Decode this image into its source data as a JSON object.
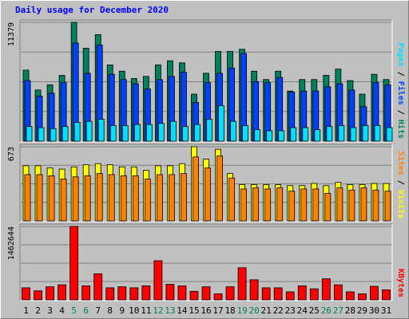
{
  "title": "Daily usage for December 2020",
  "colors": {
    "hits": "#00805c",
    "files": "#0040ff",
    "pages": "#00e0ff",
    "visits": "#ffff00",
    "sites": "#ff8000",
    "kbytes": "#ff0000",
    "weekend_label": "#00805c",
    "weekday_label": "#000000"
  },
  "chart_data": [
    {
      "type": "bar",
      "id": "hits-files-pages",
      "ylim": [
        0,
        11379
      ],
      "y_tick_label": "11379",
      "legend": [
        "Pages",
        "Files",
        "Hits"
      ],
      "x": [
        1,
        2,
        3,
        4,
        5,
        6,
        7,
        8,
        9,
        10,
        11,
        12,
        13,
        14,
        15,
        16,
        17,
        18,
        19,
        20,
        21,
        22,
        23,
        24,
        25,
        26,
        27,
        28,
        29,
        30,
        31
      ],
      "weekend_days": [
        5,
        6,
        12,
        13,
        19,
        20,
        26,
        27
      ],
      "series": [
        {
          "name": "Hits",
          "values": [
            6800,
            4900,
            5400,
            6300,
            11379,
            8900,
            10200,
            7300,
            6700,
            6000,
            6200,
            7300,
            7700,
            7500,
            4500,
            6500,
            8600,
            8600,
            8800,
            6700,
            5900,
            6700,
            4800,
            5900,
            5900,
            6300,
            6900,
            5800,
            4500,
            6400,
            5900
          ]
        },
        {
          "name": "Files",
          "values": [
            5800,
            4300,
            4600,
            5600,
            9400,
            6500,
            9200,
            6400,
            5900,
            5500,
            5000,
            5900,
            6200,
            6600,
            3700,
            5600,
            6500,
            7000,
            8400,
            5700,
            5600,
            6100,
            4700,
            4800,
            4800,
            5200,
            5500,
            4900,
            3300,
            5600,
            5400
          ]
        },
        {
          "name": "Pages",
          "values": [
            1400,
            1300,
            1200,
            1400,
            1800,
            1900,
            2100,
            1500,
            1500,
            1600,
            1600,
            1700,
            1900,
            1400,
            1600,
            2100,
            3400,
            1900,
            1500,
            1100,
            1000,
            1000,
            1300,
            1300,
            1100,
            1400,
            1500,
            1300,
            1500,
            1500,
            1300
          ]
        }
      ]
    },
    {
      "type": "bar",
      "id": "visits-sites",
      "ylim": [
        0,
        673
      ],
      "y_tick_label": "673",
      "legend": [
        "Sites",
        "Visits"
      ],
      "x": [
        1,
        2,
        3,
        4,
        5,
        6,
        7,
        8,
        9,
        10,
        11,
        12,
        13,
        14,
        15,
        16,
        17,
        18,
        19,
        20,
        21,
        22,
        23,
        24,
        25,
        26,
        27,
        28,
        29,
        30,
        31
      ],
      "weekend_days": [
        5,
        6,
        12,
        13,
        19,
        20,
        26,
        27
      ],
      "series": [
        {
          "name": "Visits",
          "values": [
            500,
            500,
            480,
            470,
            490,
            510,
            520,
            510,
            490,
            490,
            460,
            500,
            500,
            520,
            673,
            560,
            650,
            430,
            330,
            330,
            330,
            330,
            320,
            320,
            340,
            320,
            350,
            330,
            330,
            340,
            340
          ]
        },
        {
          "name": "Sites",
          "values": [
            420,
            420,
            410,
            380,
            400,
            410,
            430,
            420,
            410,
            410,
            380,
            420,
            420,
            430,
            580,
            480,
            590,
            390,
            290,
            300,
            290,
            300,
            270,
            290,
            290,
            250,
            300,
            280,
            300,
            280,
            270
          ]
        }
      ]
    },
    {
      "type": "bar",
      "id": "kbytes",
      "ylim": [
        0,
        1462644
      ],
      "y_tick_label": "1462644",
      "legend": [
        "KBytes"
      ],
      "x": [
        1,
        2,
        3,
        4,
        5,
        6,
        7,
        8,
        9,
        10,
        11,
        12,
        13,
        14,
        15,
        16,
        17,
        18,
        19,
        20,
        21,
        22,
        23,
        24,
        25,
        26,
        27,
        28,
        29,
        30,
        31
      ],
      "weekend_days": [
        5,
        6,
        12,
        13,
        19,
        20,
        26,
        27
      ],
      "series": [
        {
          "name": "KBytes",
          "values": [
            240000,
            180000,
            260000,
            300000,
            1462644,
            280000,
            520000,
            240000,
            260000,
            240000,
            280000,
            780000,
            310000,
            280000,
            170000,
            260000,
            120000,
            260000,
            640000,
            400000,
            240000,
            240000,
            160000,
            280000,
            220000,
            420000,
            300000,
            160000,
            120000,
            270000,
            200000
          ]
        }
      ]
    }
  ]
}
